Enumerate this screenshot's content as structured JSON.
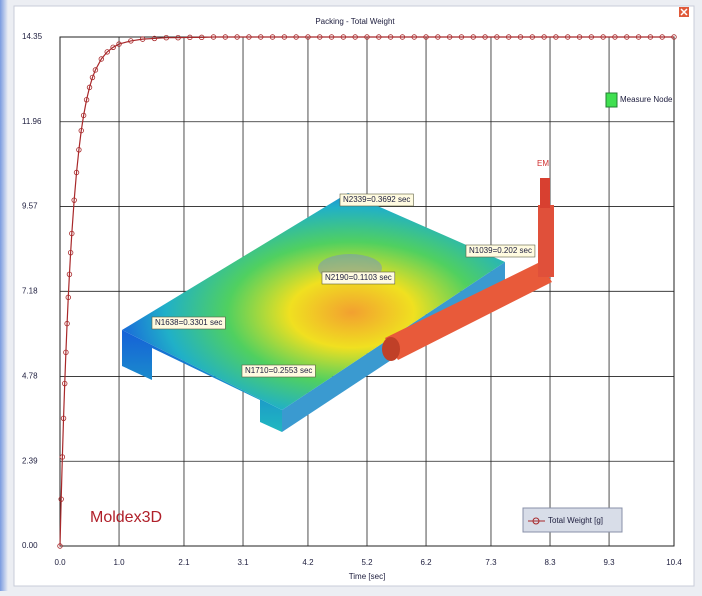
{
  "chart_data": {
    "type": "line",
    "title": "Packing - Total Weight",
    "x_label": "Time [sec]",
    "x": [
      0,
      0.02,
      0.04,
      0.06,
      0.08,
      0.1,
      0.12,
      0.14,
      0.16,
      0.18,
      0.2,
      0.24,
      0.28,
      0.32,
      0.36,
      0.4,
      0.45,
      0.5,
      0.55,
      0.6,
      0.7,
      0.8,
      0.9,
      1.0,
      1.2,
      1.4,
      1.6,
      1.8,
      2.0,
      2.2,
      2.4,
      2.6,
      2.8,
      3.0,
      3.2,
      3.4,
      3.6,
      3.8,
      4.0,
      4.2,
      4.4,
      4.6,
      4.8,
      5.0,
      5.2,
      5.4,
      5.6,
      5.8,
      6.0,
      6.2,
      6.4,
      6.6,
      6.8,
      7.0,
      7.2,
      7.4,
      7.6,
      7.8,
      8.0,
      8.2,
      8.4,
      8.6,
      8.8,
      9.0,
      9.2,
      9.4,
      9.6,
      9.8,
      10.0,
      10.2,
      10.4
    ],
    "series": [
      {
        "name": "Total Weight [g]",
        "color": "#a8282a",
        "values": [
          0,
          1.32,
          2.51,
          3.6,
          4.58,
          5.46,
          6.27,
          7.01,
          7.66,
          8.27,
          8.81,
          9.75,
          10.53,
          11.17,
          11.71,
          12.14,
          12.58,
          12.93,
          13.21,
          13.42,
          13.73,
          13.93,
          14.06,
          14.15,
          14.24,
          14.29,
          14.31,
          14.33,
          14.33,
          14.34,
          14.34,
          14.35,
          14.35,
          14.35,
          14.35,
          14.35,
          14.35,
          14.35,
          14.35,
          14.35,
          14.35,
          14.35,
          14.35,
          14.35,
          14.35,
          14.35,
          14.35,
          14.35,
          14.35,
          14.35,
          14.35,
          14.35,
          14.35,
          14.35,
          14.35,
          14.35,
          14.35,
          14.35,
          14.35,
          14.35,
          14.35,
          14.35,
          14.35,
          14.35,
          14.35,
          14.35,
          14.35,
          14.35,
          14.35,
          14.35,
          14.35
        ]
      }
    ],
    "xlim": [
      0,
      10.4
    ],
    "ylim": [
      0,
      14.35
    ],
    "xticks": [
      {
        "value": 0,
        "label": "0.0"
      },
      {
        "value": 1,
        "label": "1.0"
      },
      2.1,
      3.1,
      4.2,
      5.2,
      6.2,
      7.3,
      8.3,
      9.3,
      10.4
    ],
    "yticks": [
      {
        "value": 0,
        "label": "0.00"
      },
      2.39,
      4.78,
      7.18,
      9.57,
      11.96,
      14.35
    ],
    "grid": true,
    "measure_node": "Measure Node",
    "annotations": [
      "N2339=0.3692 sec",
      "N1039=0.202 sec",
      "N2190=0.1103 sec",
      "N1638=0.3301 sec",
      "N1710=0.2553 sec"
    ],
    "gate_label": "EM",
    "logo": "Moldex3D"
  }
}
